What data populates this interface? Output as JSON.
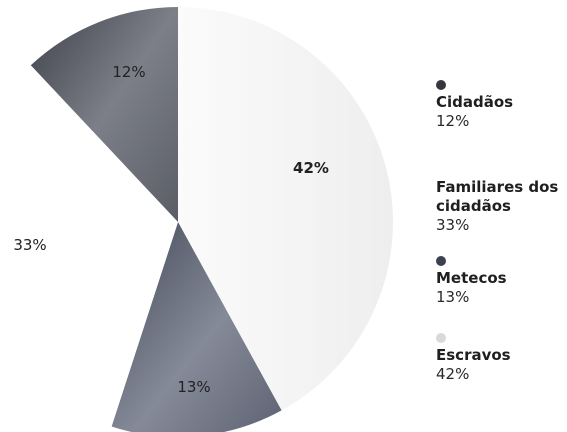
{
  "chart_data": {
    "type": "pie",
    "title": "",
    "slices": [
      {
        "label": "Cidadãos",
        "value": 12,
        "value_label": "12%",
        "color": "#4a4d55",
        "legend_dot": true
      },
      {
        "label": "Familiares dos cidadãos",
        "value": 33,
        "value_label": "33%",
        "color": "#ffffff",
        "legend_dot": false
      },
      {
        "label": "Metecos",
        "value": 13,
        "value_label": "13%",
        "color": "#3c4150",
        "legend_dot": true
      },
      {
        "label": "Escravos",
        "value": 42,
        "value_label": "42%",
        "color": "#f2f2f2",
        "legend_dot": true
      }
    ],
    "legend_position": "right"
  },
  "legend": {
    "items": [
      {
        "name": "Cidadãos",
        "value": "12%",
        "color": "#35373d",
        "show_dot": true
      },
      {
        "name": "Familiares dos cidadãos",
        "value": "33%",
        "color": "#ffffff",
        "show_dot": false
      },
      {
        "name": "Metecos",
        "value": "13%",
        "color": "#3c4150",
        "show_dot": true
      },
      {
        "name": "Escravos",
        "value": "42%",
        "color": "#d9d9d9",
        "show_dot": true
      }
    ]
  }
}
